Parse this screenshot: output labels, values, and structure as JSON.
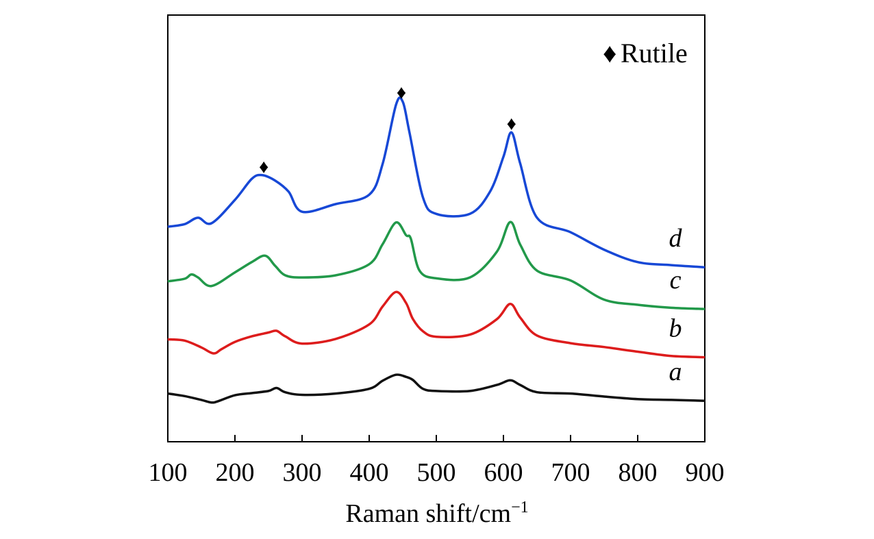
{
  "chart_data": {
    "type": "line",
    "xlabel": "Raman shift/cm",
    "xlabel_sup": "−1",
    "xlim": [
      100,
      900
    ],
    "ylim": [
      0,
      100
    ],
    "x_ticks": [
      100,
      200,
      300,
      400,
      500,
      600,
      700,
      800,
      900
    ],
    "y_ticks_shown": false,
    "grid": false,
    "legend": {
      "position": "top-right",
      "marker": "♦",
      "label": "Rutile"
    },
    "colors": {
      "a": "#111111",
      "b": "#dd1c1c",
      "c": "#22994a",
      "d": "#1748d6"
    },
    "series": [
      {
        "name": "a",
        "x": [
          100,
          125,
          150,
          165,
          175,
          200,
          225,
          250,
          262,
          275,
          300,
          350,
          400,
          420,
          440,
          455,
          465,
          480,
          500,
          550,
          590,
          610,
          625,
          650,
          700,
          750,
          800,
          850,
          900
        ],
        "values": [
          11.3,
          10.7,
          9.8,
          9.2,
          9.5,
          10.9,
          11.4,
          11.9,
          12.6,
          11.6,
          11.0,
          11.3,
          12.4,
          14.3,
          15.7,
          15.2,
          14.5,
          12.4,
          11.9,
          11.9,
          13.3,
          14.4,
          13.3,
          11.6,
          11.3,
          10.6,
          10.0,
          9.8,
          9.6
        ]
      },
      {
        "name": "b",
        "x": [
          100,
          125,
          150,
          168,
          180,
          200,
          225,
          250,
          262,
          275,
          300,
          350,
          400,
          420,
          440,
          455,
          465,
          480,
          500,
          550,
          590,
          610,
          625,
          650,
          700,
          750,
          800,
          850,
          900
        ],
        "values": [
          24.0,
          23.7,
          22.1,
          20.7,
          21.7,
          23.4,
          24.7,
          25.6,
          26.0,
          24.7,
          23.0,
          24.1,
          27.5,
          31.7,
          35.1,
          32.5,
          28.8,
          25.9,
          24.6,
          25.1,
          28.7,
          32.3,
          29.1,
          24.9,
          23.1,
          22.2,
          21.1,
          20.1,
          19.8
        ]
      },
      {
        "name": "c",
        "x": [
          100,
          125,
          135,
          145,
          165,
          200,
          225,
          245,
          260,
          275,
          300,
          350,
          400,
          420,
          440,
          455,
          462,
          475,
          500,
          550,
          590,
          610,
          625,
          650,
          700,
          750,
          800,
          850,
          900
        ],
        "values": [
          37.6,
          38.2,
          39.2,
          38.5,
          36.5,
          39.7,
          42.1,
          43.6,
          41.2,
          39.0,
          38.5,
          39.0,
          41.6,
          46.3,
          51.4,
          48.4,
          47.6,
          40.1,
          38.3,
          38.5,
          44.5,
          51.5,
          46.2,
          40.1,
          37.8,
          33.3,
          32.1,
          31.4,
          31.1
        ]
      },
      {
        "name": "d",
        "x": [
          100,
          125,
          145,
          165,
          200,
          225,
          240,
          260,
          280,
          300,
          350,
          400,
          420,
          440,
          450,
          460,
          480,
          500,
          550,
          580,
          600,
          612,
          625,
          650,
          700,
          750,
          800,
          850,
          900
        ],
        "values": [
          50.4,
          51.0,
          52.5,
          51.2,
          56.7,
          61.6,
          62.5,
          61.2,
          58.6,
          53.9,
          55.7,
          57.9,
          65.1,
          79.0,
          79.7,
          72.5,
          57.3,
          53.4,
          53.4,
          58.6,
          66.8,
          72.5,
          65.2,
          52.5,
          49.1,
          45.0,
          42.1,
          41.4,
          40.9
        ]
      }
    ],
    "markers": [
      {
        "x": 243,
        "y": 64.6
      },
      {
        "x": 448,
        "y": 82.0
      },
      {
        "x": 612,
        "y": 74.7
      }
    ]
  }
}
